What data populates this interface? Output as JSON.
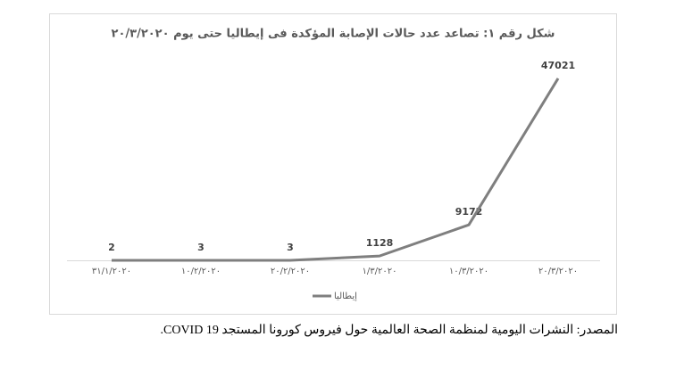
{
  "chart_data": {
    "type": "line",
    "title": "شكل رقم ١: تصاعد عدد حالات الإصابة المؤكدة فى إيطاليا حتى يوم ٢٠/٣/٢٠٢٠",
    "categories": [
      "٣١/١/٢٠٢٠",
      "١٠/٢/٢٠٢٠",
      "٢٠/٢/٢٠٢٠",
      "١/٣/٢٠٢٠",
      "١٠/٣/٢٠٢٠",
      "٢٠/٣/٢٠٢٠"
    ],
    "series": [
      {
        "name": "إيطاليا",
        "color": "#7f7f7f",
        "values": [
          2,
          3,
          3,
          1128,
          9172,
          47021
        ]
      }
    ],
    "ylim": [
      0,
      50000
    ]
  },
  "source": "المصدر: النشرات اليومية لمنظمة الصحة العالمية حول فيروس كورونا المستجد COVID 19."
}
